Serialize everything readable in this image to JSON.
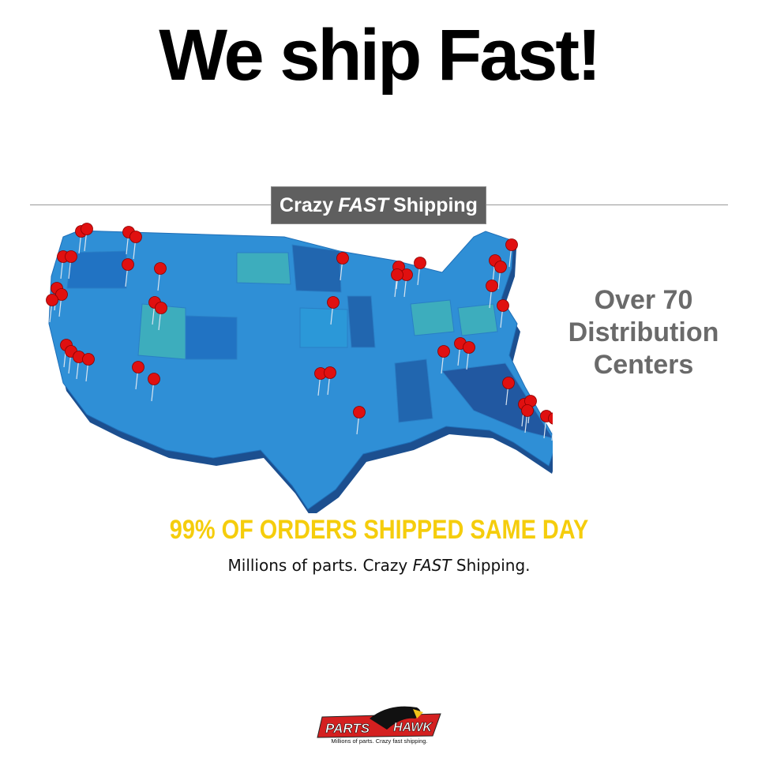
{
  "headline": "We ship Fast!",
  "badge": {
    "prefix": "Crazy",
    "emphasis": "FAST",
    "suffix": "Shipping"
  },
  "side_text": {
    "line1": "Over 70",
    "line2": "Distribution",
    "line3": "Centers"
  },
  "stat_line": "99% OF ORDERS SHIPPED SAME DAY",
  "tagline": {
    "prefix": "Millions of parts. Crazy ",
    "emphasis": "FAST",
    "suffix": " Shipping."
  },
  "logo": {
    "left": "PARTS",
    "right": "HAWK",
    "tagline": "Millions of parts. Crazy fast shipping."
  },
  "colors": {
    "map_blue": "#2f8fd6",
    "map_dark": "#1f5fa8",
    "map_teal": "#3fb3b8",
    "pin": "#e01010",
    "stat_yellow": "#f5cd0c",
    "badge_gray": "#5f5f5f"
  },
  "map_icon": "usa-map-with-distribution-pins"
}
